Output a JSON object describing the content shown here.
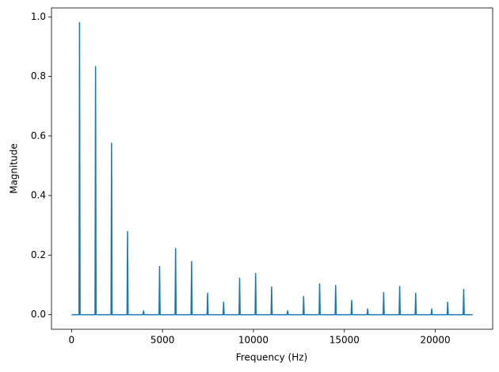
{
  "chart_data": {
    "type": "line",
    "xlabel": "Frequency (Hz)",
    "ylabel": "Magnitude",
    "x": [
      0,
      410,
      440,
      470,
      1290,
      1320,
      1350,
      2170,
      2200,
      2230,
      3050,
      3080,
      3110,
      3930,
      3960,
      3990,
      4810,
      4840,
      4870,
      5690,
      5720,
      5750,
      6570,
      6600,
      6630,
      7450,
      7480,
      7510,
      8330,
      8360,
      8390,
      9210,
      9240,
      9270,
      10090,
      10120,
      10150,
      10970,
      11000,
      11030,
      11850,
      11880,
      11910,
      12730,
      12760,
      12790,
      13610,
      13640,
      13670,
      14490,
      14520,
      14550,
      15370,
      15400,
      15430,
      16250,
      16280,
      16310,
      17130,
      17160,
      17190,
      18010,
      18040,
      18070,
      18890,
      18920,
      18950,
      19770,
      19800,
      19830,
      20650,
      20680,
      20710,
      21530,
      21560,
      21590,
      22050
    ],
    "series": [
      {
        "color": "#1f77b4",
        "values": [
          0,
          0,
          0.981,
          0,
          0,
          0.833,
          0,
          0,
          0.576,
          0,
          0,
          0.279,
          0,
          0,
          0.013,
          0,
          0,
          0.162,
          0,
          0,
          0.222,
          0,
          0,
          0.178,
          0,
          0,
          0.072,
          0,
          0,
          0.042,
          0,
          0,
          0.122,
          0,
          0,
          0.138,
          0,
          0,
          0.093,
          0,
          0,
          0.013,
          0,
          0,
          0.061,
          0,
          0,
          0.103,
          0,
          0,
          0.098,
          0,
          0,
          0.048,
          0,
          0,
          0.019,
          0,
          0,
          0.074,
          0,
          0,
          0.095,
          0,
          0,
          0.072,
          0,
          0,
          0.019,
          0,
          0,
          0.042,
          0,
          0,
          0.085,
          0,
          0
        ]
      }
    ],
    "xlim": [
      -1102.5,
      23152.5
    ],
    "xticks": [
      0,
      5000,
      10000,
      15000,
      20000
    ],
    "ylim": [
      -0.049,
      1.03
    ],
    "yticks": [
      {
        "value": 0,
        "label": "0.0"
      },
      0.2,
      0.4,
      0.6,
      0.8,
      {
        "value": 1,
        "label": "1.0"
      }
    ],
    "grid": false
  }
}
